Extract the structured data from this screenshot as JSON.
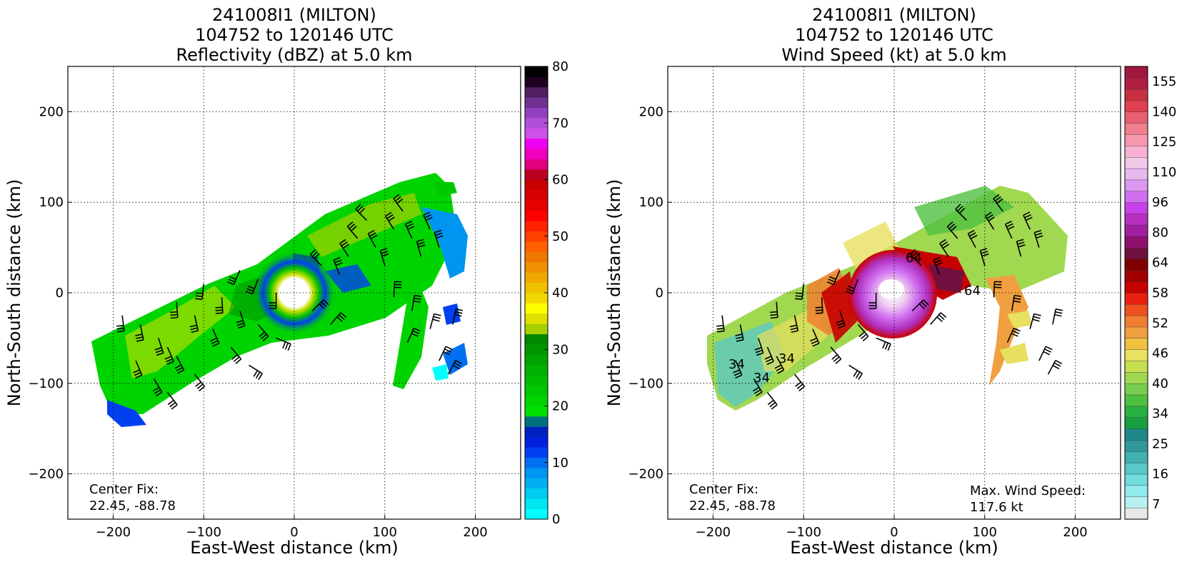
{
  "chart_data": [
    {
      "type": "heatmap",
      "title_lines": [
        "241008I1 (MILTON)",
        "104752 to 120146 UTC",
        "Reflectivity (dBZ) at 5.0 km"
      ],
      "xlabel": "East-West distance (km)",
      "ylabel": "North-South distance (km)",
      "xlim": [
        -250,
        250
      ],
      "ylim": [
        -250,
        250
      ],
      "xticks": [
        -200,
        -100,
        0,
        100,
        200
      ],
      "yticks": [
        -200,
        -100,
        0,
        100,
        200
      ],
      "xtick_labels": [
        "−200",
        "−100",
        "0",
        "100",
        "200"
      ],
      "ytick_labels": [
        "−200",
        "−100",
        "0",
        "100",
        "200"
      ],
      "grid": true,
      "annotation": [
        "Center Fix:",
        "22.45, -88.78"
      ],
      "colorbar": {
        "ticks": [
          0,
          10,
          20,
          30,
          40,
          50,
          60,
          70,
          80
        ],
        "tick_labels": [
          "0",
          "10",
          "20",
          "30",
          "40",
          "50",
          "60",
          "70",
          "80"
        ],
        "colors": [
          "#00ffff",
          "#00e5f0",
          "#00cbf0",
          "#00b0f0",
          "#0095f0",
          "#0070f0",
          "#0040f0",
          "#0020e0",
          "#0020c0",
          "#007080",
          "#00e000",
          "#00d400",
          "#00c800",
          "#00bc00",
          "#00b000",
          "#00a400",
          "#009800",
          "#008800",
          "#a8d000",
          "#e0e000",
          "#ffff00",
          "#f0d800",
          "#f0c000",
          "#f0a800",
          "#f09000",
          "#f07800",
          "#ff6000",
          "#ff4000",
          "#ff2000",
          "#ff0000",
          "#e80000",
          "#d80000",
          "#c80000",
          "#b80020",
          "#e00080",
          "#f000c0",
          "#f000f0",
          "#d050e8",
          "#b050d8",
          "#9040c0",
          "#703090",
          "#502060",
          "#200020",
          "#000000"
        ]
      },
      "summary": "Reflectivity field elongated SW-NE from about (-225,-60) to (195,120) km, eye near the center, wind barbs overlaid."
    },
    {
      "type": "heatmap",
      "title_lines": [
        "241008I1 (MILTON)",
        "104752 to 120146 UTC",
        "Wind Speed (kt) at 5.0 km"
      ],
      "xlabel": "East-West distance (km)",
      "ylabel": "North-South distance (km)",
      "xlim": [
        -250,
        250
      ],
      "ylim": [
        -250,
        250
      ],
      "xticks": [
        -200,
        -100,
        0,
        100,
        200
      ],
      "yticks": [
        -200,
        -100,
        0,
        100,
        200
      ],
      "xtick_labels": [
        "−200",
        "−100",
        "0",
        "100",
        "200"
      ],
      "ytick_labels": [
        "−200",
        "−100",
        "0",
        "100",
        "200"
      ],
      "grid": true,
      "annotation": [
        "Center Fix:",
        "22.45, -88.78"
      ],
      "annotation_right": [
        "Max. Wind Speed:",
        "117.6 kt"
      ],
      "contour_labels": [
        "64",
        "64",
        "34",
        "34",
        "34"
      ],
      "colorbar": {
        "tick_labels": [
          "7",
          "16",
          "25",
          "34",
          "40",
          "46",
          "52",
          "58",
          "64",
          "80",
          "96",
          "110",
          "125",
          "140",
          "155"
        ],
        "colors": [
          "#e8e8e8",
          "#b8f0f0",
          "#90ecec",
          "#70dcdc",
          "#58c8c8",
          "#40b0b0",
          "#309898",
          "#208888",
          "#18a040",
          "#28b040",
          "#50c040",
          "#78cc50",
          "#a0d850",
          "#c8e050",
          "#e8e060",
          "#f0c040",
          "#f0a040",
          "#f08030",
          "#f05020",
          "#e82010",
          "#c80000",
          "#a00000",
          "#800000",
          "#701040",
          "#901070",
          "#a020a0",
          "#b830c0",
          "#c840e8",
          "#d070f0",
          "#dc98f0",
          "#e8b8f0",
          "#f0c8e8",
          "#f8b0d0",
          "#f898b0",
          "#f08090",
          "#e86070",
          "#e04050",
          "#c83040",
          "#b02040",
          "#a01840"
        ]
      },
      "summary": "Wind speed field elongated SW-NE, strongest winds (80-117.6 kt) in a ring around the eye near the center."
    }
  ]
}
